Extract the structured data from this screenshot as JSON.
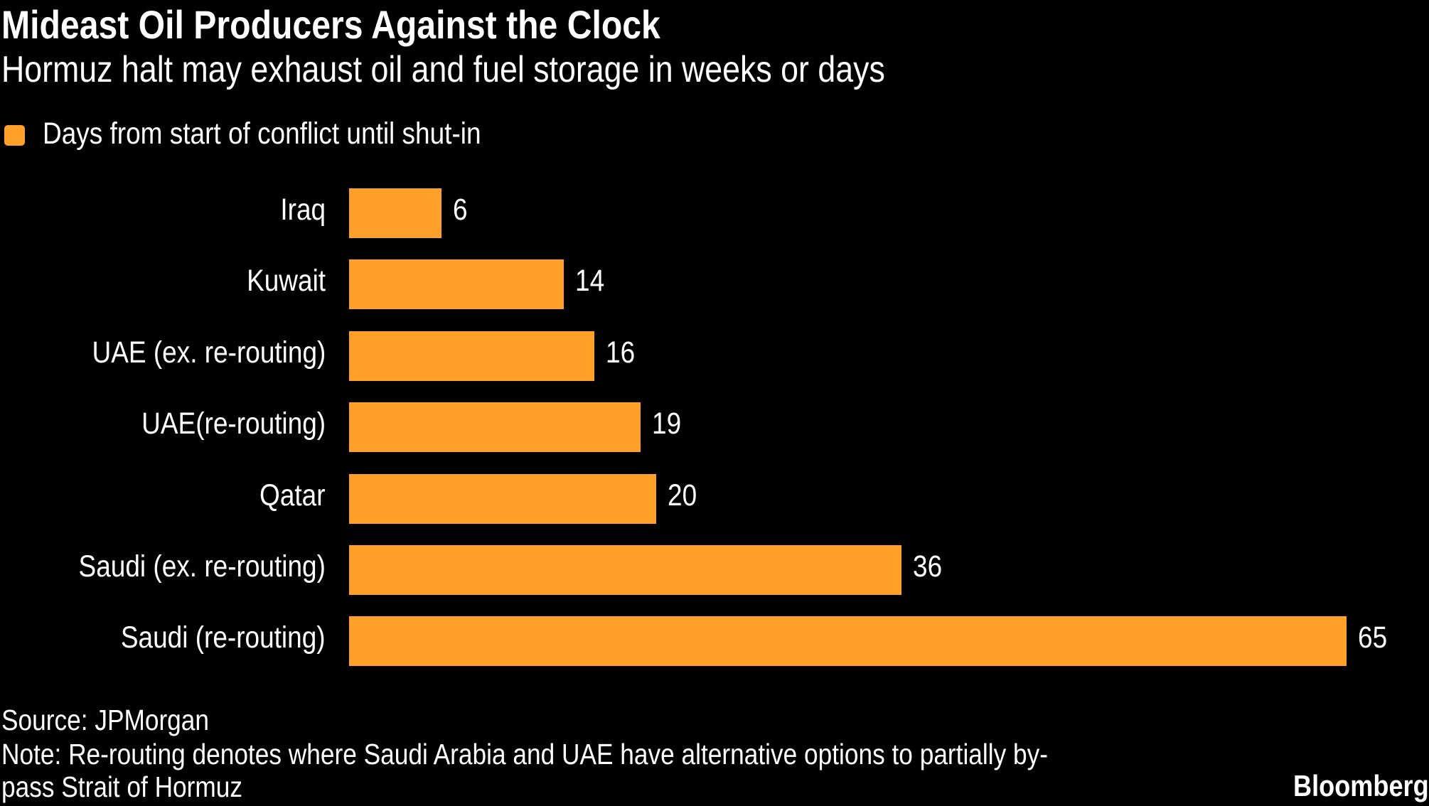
{
  "chart_data": {
    "type": "bar",
    "orientation": "horizontal",
    "title": "Mideast Oil Producers Against the Clock",
    "subtitle": "Hormuz halt may exhaust oil and fuel storage in weeks or days",
    "categories": [
      "Iraq",
      "Kuwait",
      "UAE (ex. re-routing)",
      "UAE(re-routing)",
      "Qatar",
      "Saudi (ex. re-routing)",
      "Saudi (re-routing)"
    ],
    "series": [
      {
        "name": "Days from start of conflict until shut-in",
        "values": [
          6,
          14,
          16,
          19,
          20,
          36,
          65
        ],
        "color": "#FFA028"
      }
    ],
    "value_labels": [
      "6",
      "14",
      "16",
      "19",
      "20",
      "36",
      "65"
    ],
    "xlim": [
      0,
      65
    ],
    "grid": false,
    "legend_position": "top-left",
    "source": "Source: JPMorgan",
    "note_line1": "Note: Re-routing denotes where Saudi Arabia and UAE have alternative options to partially by-",
    "note_line2": "pass Strait of Hormuz",
    "brand": "Bloomberg"
  },
  "colors": {
    "background": "#000000",
    "bar": "#FFA028",
    "text": "#FFFFFF"
  }
}
